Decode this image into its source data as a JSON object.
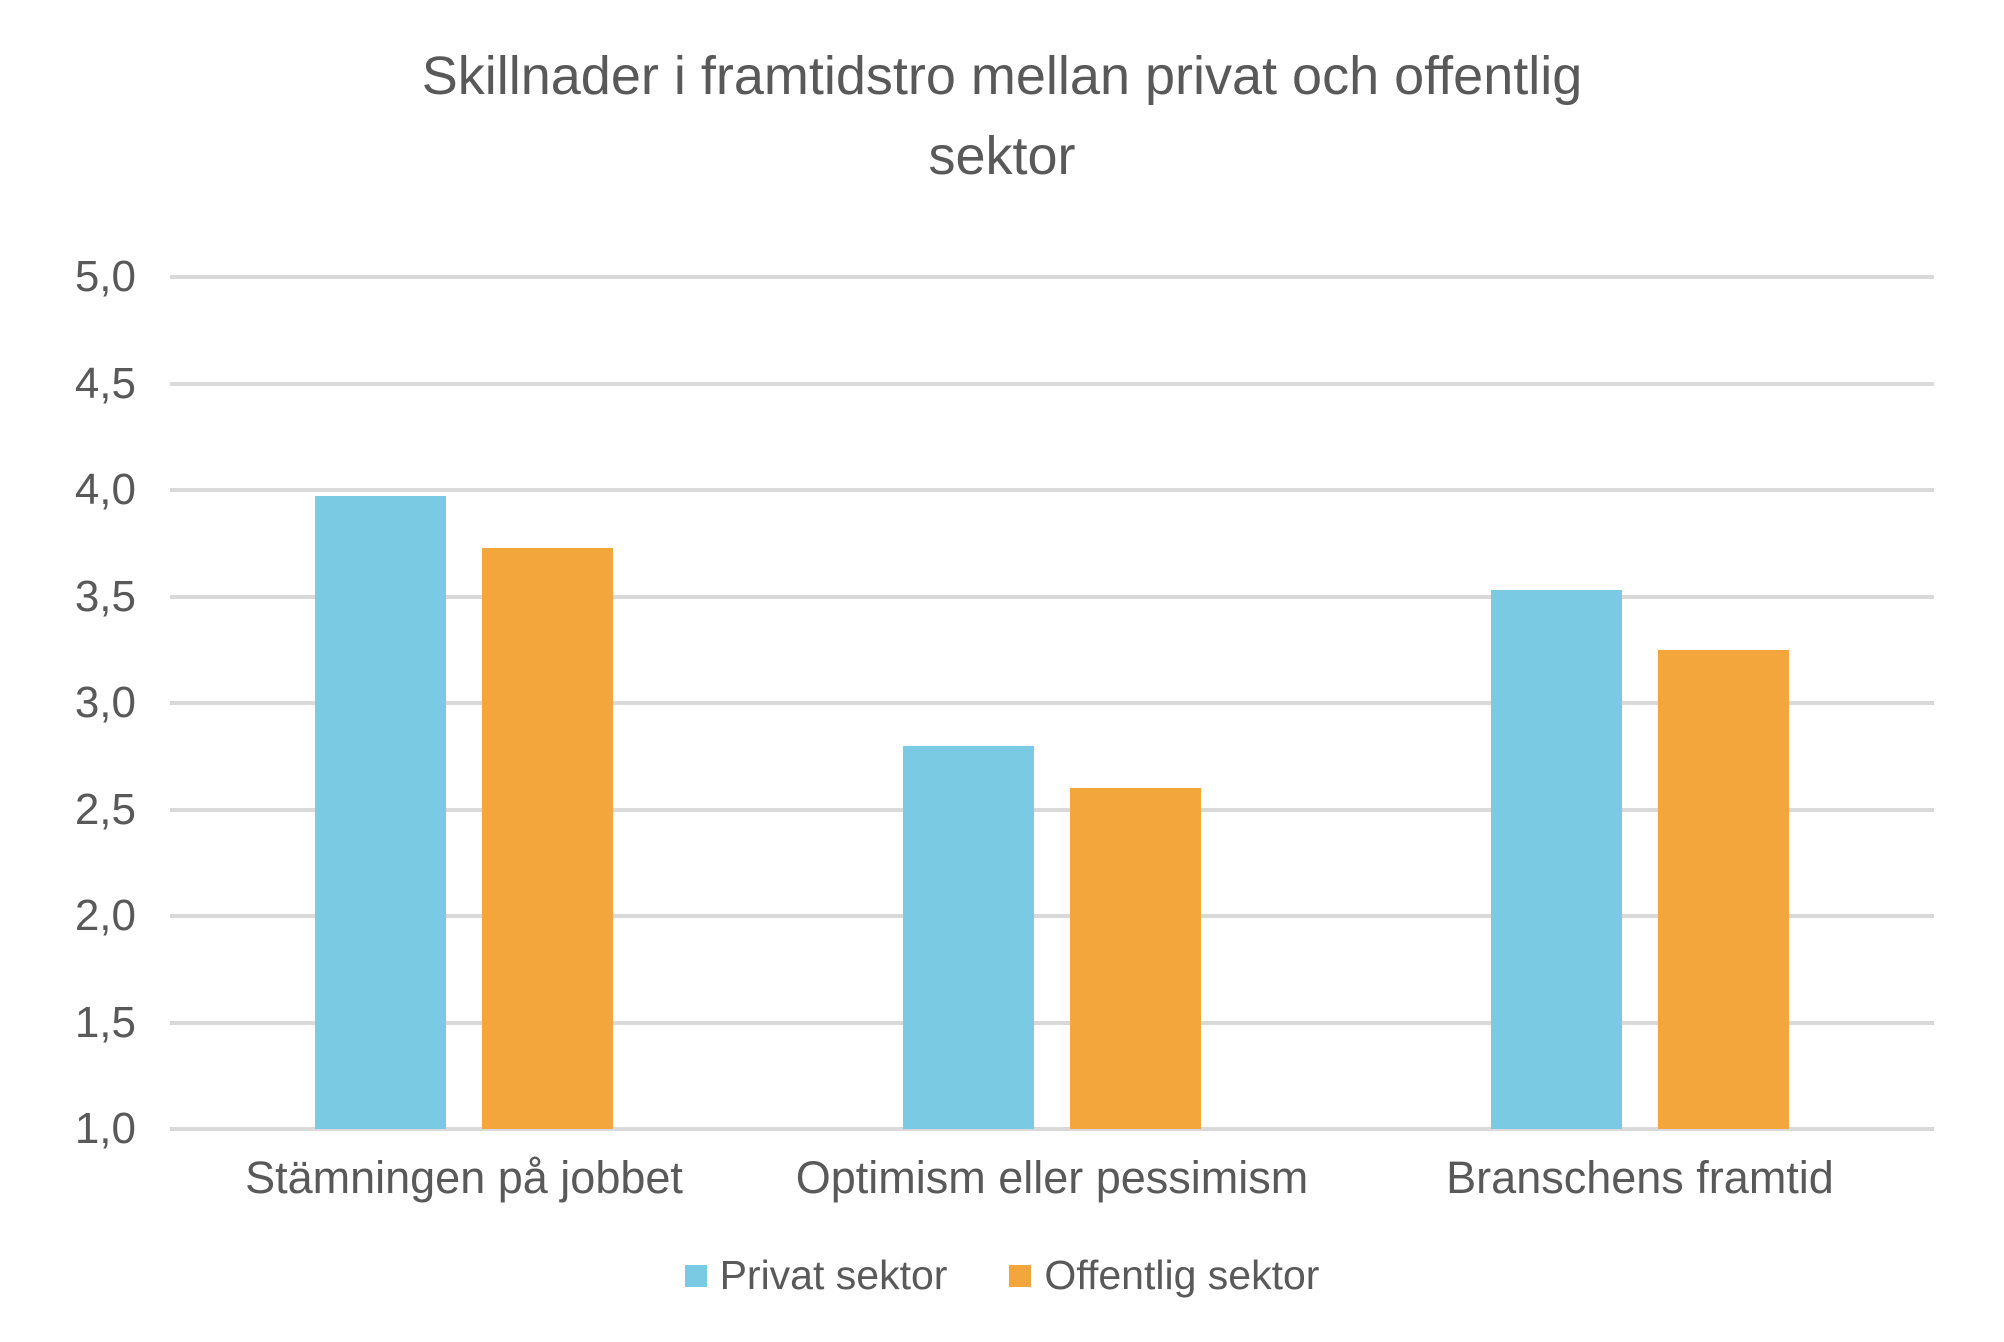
{
  "title_lines": [
    "Skillnader i framtidstro mellan privat och offentlig",
    "sektor"
  ],
  "chart_data": {
    "type": "bar",
    "title": "Skillnader i framtidstro mellan privat och offentlig sektor",
    "xlabel": "",
    "ylabel": "",
    "categories": [
      "Stämningen på jobbet",
      "Optimism eller pessimism",
      "Branschens framtid"
    ],
    "series": [
      {
        "name": "Privat sektor",
        "color": "#7ACAE4",
        "values": [
          3.97,
          2.8,
          3.53
        ]
      },
      {
        "name": "Offentlig sektor",
        "color": "#F2A63C",
        "values": [
          3.73,
          2.6,
          3.25
        ]
      }
    ],
    "ylim": [
      1.0,
      5.0
    ],
    "yticks": [
      1.0,
      1.5,
      2.0,
      2.5,
      3.0,
      3.5,
      4.0,
      4.5,
      5.0
    ],
    "ytick_labels": [
      "1,0",
      "1,5",
      "2,0",
      "2,5",
      "3,0",
      "3,5",
      "4,0",
      "4,5",
      "5,0"
    ],
    "grid": true,
    "legend_position": "bottom",
    "colors": {
      "text": "#595959",
      "gridline": "#D9D9D9",
      "background": "#FFFFFF"
    }
  }
}
